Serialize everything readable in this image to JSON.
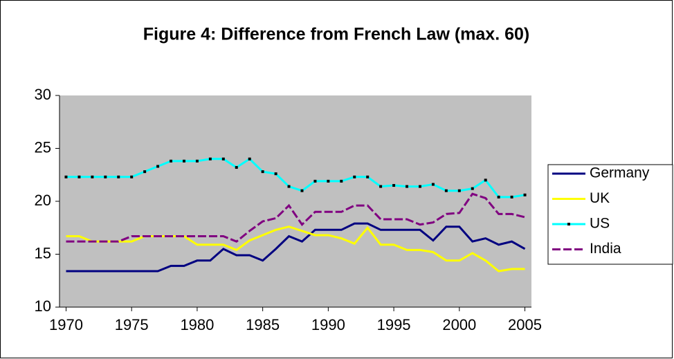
{
  "chart_data": {
    "type": "line",
    "title": "Figure 4: Difference from French Law (max. 60)",
    "x": [
      1970,
      1971,
      1972,
      1973,
      1974,
      1975,
      1976,
      1977,
      1978,
      1979,
      1980,
      1981,
      1982,
      1983,
      1984,
      1985,
      1986,
      1987,
      1988,
      1989,
      1990,
      1991,
      1992,
      1993,
      1994,
      1995,
      1996,
      1997,
      1998,
      1999,
      2000,
      2001,
      2002,
      2003,
      2004,
      2005
    ],
    "series": [
      {
        "name": "Germany",
        "color": "#000080",
        "style": "solid",
        "values": [
          13.4,
          13.4,
          13.4,
          13.4,
          13.4,
          13.4,
          13.4,
          13.4,
          13.9,
          13.9,
          14.4,
          14.4,
          15.5,
          14.9,
          14.9,
          14.4,
          15.5,
          16.7,
          16.2,
          17.3,
          17.3,
          17.3,
          17.9,
          17.9,
          17.3,
          17.3,
          17.3,
          17.3,
          16.3,
          17.6,
          17.6,
          16.2,
          16.5,
          15.9,
          16.2,
          15.5
        ]
      },
      {
        "name": "UK",
        "color": "#ffff00",
        "style": "solid",
        "values": [
          16.7,
          16.7,
          16.2,
          16.2,
          16.2,
          16.2,
          16.7,
          16.7,
          16.7,
          16.7,
          15.9,
          15.9,
          15.9,
          15.4,
          16.3,
          16.8,
          17.3,
          17.6,
          17.2,
          16.8,
          16.8,
          16.5,
          16.0,
          17.5,
          15.9,
          15.9,
          15.4,
          15.4,
          15.2,
          14.4,
          14.4,
          15.1,
          14.4,
          13.4,
          13.6,
          13.6
        ]
      },
      {
        "name": "US",
        "color": "#00ffff",
        "style": "markers",
        "values": [
          22.3,
          22.3,
          22.3,
          22.3,
          22.3,
          22.3,
          22.8,
          23.3,
          23.8,
          23.8,
          23.8,
          24.0,
          24.0,
          23.2,
          24.0,
          22.8,
          22.6,
          21.4,
          21.0,
          21.9,
          21.9,
          21.9,
          22.3,
          22.3,
          21.4,
          21.5,
          21.4,
          21.4,
          21.6,
          21.0,
          21.0,
          21.2,
          22.0,
          20.4,
          20.4,
          20.6
        ]
      },
      {
        "name": "India",
        "color": "#800080",
        "style": "dashed",
        "values": [
          16.2,
          16.2,
          16.2,
          16.2,
          16.2,
          16.7,
          16.7,
          16.7,
          16.7,
          16.7,
          16.7,
          16.7,
          16.7,
          16.2,
          17.2,
          18.1,
          18.4,
          19.6,
          17.8,
          19.0,
          19.0,
          19.0,
          19.6,
          19.6,
          18.3,
          18.3,
          18.3,
          17.8,
          18.0,
          18.8,
          18.9,
          20.7,
          20.3,
          18.8,
          18.8,
          18.5
        ]
      }
    ],
    "xlim": [
      1969.5,
      2005.5
    ],
    "xticks": [
      1970,
      1975,
      1980,
      1985,
      1990,
      1995,
      2000,
      2005
    ],
    "ylim": [
      10,
      30
    ],
    "yticks": [
      10,
      15,
      20,
      25,
      30
    ],
    "legend": "right",
    "plot_background": "#c0c0c0"
  }
}
